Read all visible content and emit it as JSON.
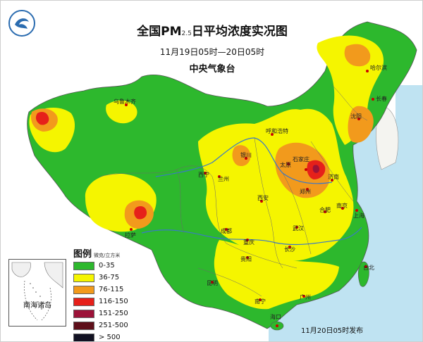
{
  "title": {
    "main": "全国PM",
    "sub": "2.5",
    "suffix": "日平均浓度实况图"
  },
  "period": "11月19日05时—20日05时",
  "agency": "中央气象台",
  "legend": {
    "title": "图例",
    "unit": "微克/立方米",
    "items": [
      {
        "label": "0-35",
        "color": "#2db82d"
      },
      {
        "label": "36-75",
        "color": "#f5f500"
      },
      {
        "label": "76-115",
        "color": "#f29a1c"
      },
      {
        "label": "116-150",
        "color": "#e6201a"
      },
      {
        "label": "151-250",
        "color": "#9c1238"
      },
      {
        "label": "251-500",
        "color": "#5e0f1a"
      },
      {
        "label": "> 500",
        "color": "#111122"
      }
    ]
  },
  "inset": {
    "label": "南海诸岛"
  },
  "issued": "11月20日05时发布",
  "cities": {
    "urumqi": "乌鲁木齐",
    "harbin": "哈尔滨",
    "changchun": "长春",
    "shenyang": "沈阳",
    "huhhot": "呼和浩特",
    "yinchuan": "银川",
    "taiyuan": "太原",
    "shijiazhuang": "石家庄",
    "jinan": "济南",
    "zhengzhou": "郑州",
    "lanzhou": "兰州",
    "xining": "西宁",
    "xian": "西安",
    "hefei": "合肥",
    "nanjing": "南京",
    "shanghai": "上海",
    "lhasa": "拉萨",
    "chengdu": "成都",
    "chongqing": "重庆",
    "wuhan": "武汉",
    "changsha": "长沙",
    "guiyang": "贵阳",
    "kunming": "昆明",
    "nanning": "南宁",
    "guangzhou": "广州",
    "haikou": "海口",
    "taipei": "台北"
  },
  "colors": {
    "sea": "#bfe3f2",
    "land_outside": "#ffffff",
    "boundary": "#6a6a6a",
    "river": "#3a78c8"
  }
}
